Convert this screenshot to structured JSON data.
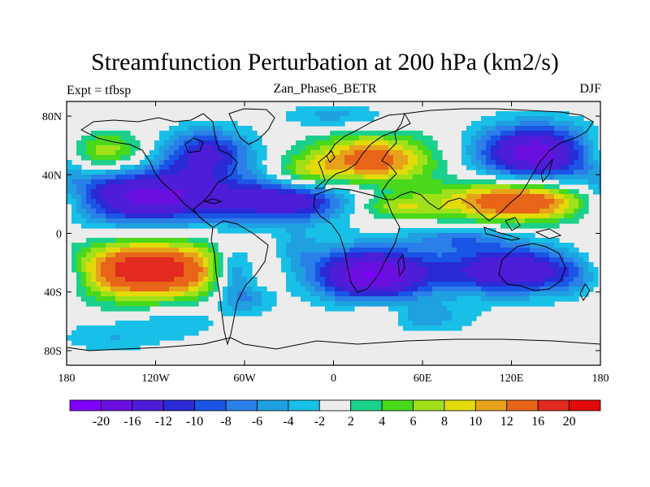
{
  "chart_data": {
    "type": "heatmap",
    "plot_kind": "filled contour map",
    "title": "Streamfunction Perturbation at 200 hPa (km2/s)",
    "left_string": "Expt = tfbsp",
    "center_string": "Zan_Phase6_BETR",
    "right_string": "DJF",
    "xlabel": "",
    "ylabel": "",
    "x_range": [
      -180,
      180
    ],
    "y_range": [
      -90,
      90
    ],
    "x_ticks": [
      {
        "value": -180,
        "label": "180"
      },
      {
        "value": -120,
        "label": "120W"
      },
      {
        "value": -60,
        "label": "60W"
      },
      {
        "value": 0,
        "label": "0"
      },
      {
        "value": 60,
        "label": "60E"
      },
      {
        "value": 120,
        "label": "120E"
      },
      {
        "value": 180,
        "label": "180"
      }
    ],
    "y_ticks": [
      {
        "value": 80,
        "label": "80N"
      },
      {
        "value": 40,
        "label": "40N"
      },
      {
        "value": 0,
        "label": "0"
      },
      {
        "value": -40,
        "label": "40S"
      },
      {
        "value": -80,
        "label": "80S"
      }
    ],
    "colorbar": {
      "labels": [
        "-20",
        "-16",
        "-12",
        "-10",
        "-8",
        "-6",
        "-4",
        "-2",
        "2",
        "4",
        "6",
        "8",
        "10",
        "12",
        "16",
        "20"
      ],
      "colors": [
        "#7f00ff",
        "#6a0fe0",
        "#4d1dd8",
        "#2a2ad6",
        "#1a55e6",
        "#2a7fe8",
        "#1fa0e0",
        "#18bfe6",
        "#ececec",
        "#1ad08a",
        "#49d81a",
        "#9fe018",
        "#e3da0a",
        "#e6a21a",
        "#e86418",
        "#e22a1e",
        "#e20a0a"
      ]
    },
    "field_centers": [
      {
        "lon": -130,
        "lat": 25,
        "value": -18,
        "spread_lon": 45,
        "spread_lat": 14
      },
      {
        "lon": -30,
        "lat": 22,
        "value": -14,
        "spread_lon": 32,
        "spread_lat": 10
      },
      {
        "lon": -85,
        "lat": 55,
        "value": -12,
        "spread_lon": 22,
        "spread_lat": 12
      },
      {
        "lon": 135,
        "lat": 55,
        "value": -18,
        "spread_lon": 28,
        "spread_lat": 14
      },
      {
        "lon": 25,
        "lat": -28,
        "value": -20,
        "spread_lon": 28,
        "spread_lat": 13
      },
      {
        "lon": 120,
        "lat": -25,
        "value": -16,
        "spread_lon": 35,
        "spread_lat": 12
      },
      {
        "lon": -67,
        "lat": -25,
        "value": -10,
        "spread_lon": 10,
        "spread_lat": 12
      },
      {
        "lon": -125,
        "lat": -25,
        "value": 20,
        "spread_lon": 38,
        "spread_lat": 14
      },
      {
        "lon": 130,
        "lat": 22,
        "value": 18,
        "spread_lon": 40,
        "spread_lat": 10
      },
      {
        "lon": 25,
        "lat": 50,
        "value": 14,
        "spread_lon": 30,
        "spread_lat": 12
      },
      {
        "lon": -155,
        "lat": 55,
        "value": 9,
        "spread_lon": 20,
        "spread_lat": 10
      },
      {
        "lon": 40,
        "lat": 18,
        "value": 7,
        "spread_lon": 20,
        "spread_lat": 6
      },
      {
        "lon": -20,
        "lat": 40,
        "value": 6,
        "spread_lon": 15,
        "spread_lat": 8
      },
      {
        "lon": -60,
        "lat": -45,
        "value": -6,
        "spread_lon": 14,
        "spread_lat": 8
      },
      {
        "lon": 85,
        "lat": -3,
        "value": -6,
        "spread_lon": 25,
        "spread_lat": 6
      },
      {
        "lon": 30,
        "lat": -55,
        "value": 5,
        "spread_lon": 15,
        "spread_lat": 7
      },
      {
        "lon": -150,
        "lat": -70,
        "value": -4,
        "spread_lon": 25,
        "spread_lat": 8
      },
      {
        "lon": 60,
        "lat": -58,
        "value": -5,
        "spread_lon": 25,
        "spread_lat": 7
      },
      {
        "lon": -105,
        "lat": -60,
        "value": -4,
        "spread_lon": 20,
        "spread_lat": 8
      },
      {
        "lon": 170,
        "lat": -30,
        "value": -5,
        "spread_lon": 18,
        "spread_lat": 10
      },
      {
        "lon": -25,
        "lat": -10,
        "value": -4,
        "spread_lon": 12,
        "spread_lat": 10
      },
      {
        "lon": 0,
        "lat": 80,
        "value": -5,
        "spread_lon": 25,
        "spread_lat": 6
      }
    ]
  }
}
